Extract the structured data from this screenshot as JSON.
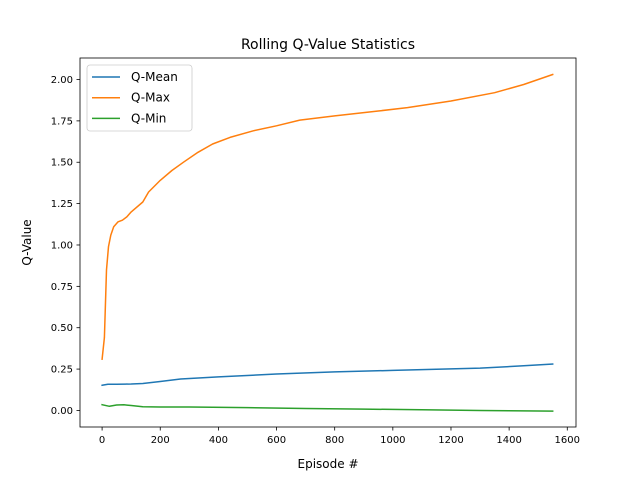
{
  "chart_data": {
    "type": "line",
    "title": "Rolling Q-Value Statistics",
    "xlabel": "Episode #",
    "ylabel": "Q-Value",
    "xlim": [
      -76,
      1630
    ],
    "ylim": [
      -0.1,
      2.13
    ],
    "xticks": [
      0,
      200,
      400,
      600,
      800,
      1000,
      1200,
      1400,
      1600
    ],
    "xtick_labels": [
      "0",
      "200",
      "400",
      "600",
      "800",
      "1000",
      "1200",
      "1400",
      "1600"
    ],
    "yticks": [
      0.0,
      0.25,
      0.5,
      0.75,
      1.0,
      1.25,
      1.5,
      1.75,
      2.0
    ],
    "ytick_labels": [
      "0.00",
      "0.25",
      "0.50",
      "0.75",
      "1.00",
      "1.25",
      "1.50",
      "1.75",
      "2.00"
    ],
    "grid": false,
    "legend_position": "upper-left",
    "series": [
      {
        "name": "Q-Mean",
        "color": "#1f77b4",
        "x": [
          0,
          20,
          50,
          80,
          100,
          140,
          200,
          270,
          400,
          600,
          800,
          1000,
          1300,
          1450,
          1550
        ],
        "y": [
          0.152,
          0.158,
          0.158,
          0.159,
          0.16,
          0.163,
          0.175,
          0.19,
          0.203,
          0.22,
          0.233,
          0.242,
          0.256,
          0.27,
          0.28
        ]
      },
      {
        "name": "Q-Max",
        "color": "#ff7f0e",
        "x": [
          0,
          8,
          15,
          22,
          30,
          40,
          55,
          70,
          85,
          100,
          140,
          160,
          200,
          240,
          280,
          330,
          380,
          440,
          520,
          600,
          680,
          800,
          950,
          1050,
          1200,
          1350,
          1450,
          1550
        ],
        "y": [
          0.31,
          0.44,
          0.85,
          0.99,
          1.06,
          1.11,
          1.14,
          1.15,
          1.17,
          1.2,
          1.26,
          1.32,
          1.39,
          1.45,
          1.5,
          1.56,
          1.61,
          1.65,
          1.69,
          1.72,
          1.755,
          1.78,
          1.81,
          1.83,
          1.87,
          1.92,
          1.97,
          2.03
        ]
      },
      {
        "name": "Q-Min",
        "color": "#2ca02c",
        "x": [
          0,
          25,
          50,
          75,
          100,
          140,
          200,
          300,
          500,
          700,
          900,
          1100,
          1300,
          1550
        ],
        "y": [
          0.035,
          0.025,
          0.033,
          0.034,
          0.03,
          0.022,
          0.021,
          0.021,
          0.017,
          0.012,
          0.008,
          0.004,
          0.0,
          -0.004
        ]
      }
    ]
  }
}
